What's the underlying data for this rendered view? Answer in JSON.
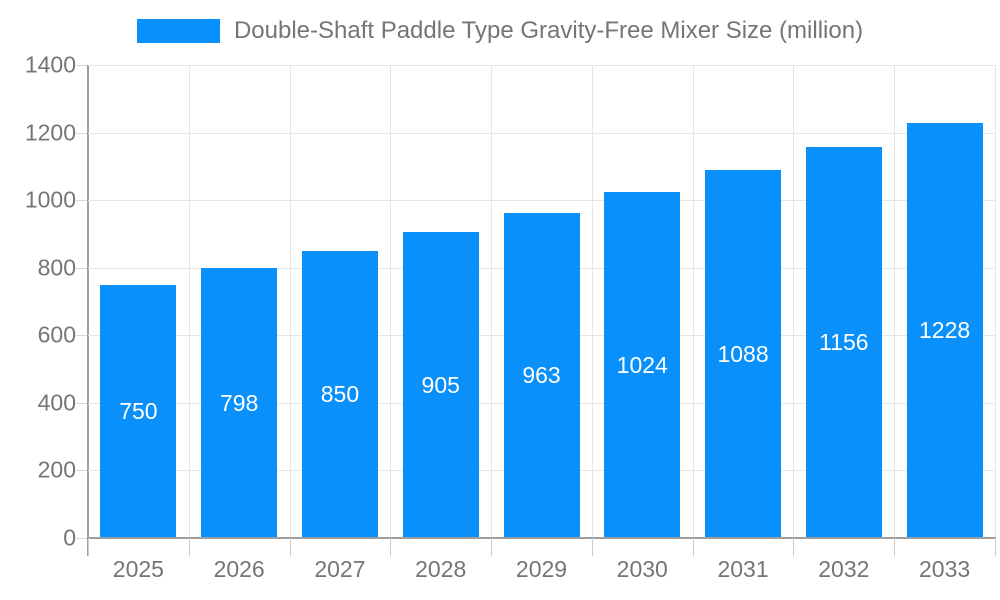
{
  "chart_data": {
    "type": "bar",
    "title": "Double-Shaft Paddle Type Gravity-Free Mixer Size (million)",
    "categories": [
      "2025",
      "2026",
      "2027",
      "2028",
      "2029",
      "2030",
      "2031",
      "2032",
      "2033"
    ],
    "values": [
      750,
      798,
      850,
      905,
      963,
      1024,
      1088,
      1156,
      1228
    ],
    "xlabel": "",
    "ylabel": "",
    "ylim": [
      0,
      1400
    ],
    "ytick_step": 200,
    "yticks": [
      0,
      200,
      400,
      600,
      800,
      1000,
      1200,
      1400
    ],
    "grid": true,
    "legend_position": "top",
    "bar_color": "#0a90fa",
    "value_label_color": "#ffffff",
    "axis_text_color": "#757575",
    "gridline_color": "#e6e6e6",
    "axis_line_color": "#9e9e9e",
    "background_color": "#ffffff"
  }
}
